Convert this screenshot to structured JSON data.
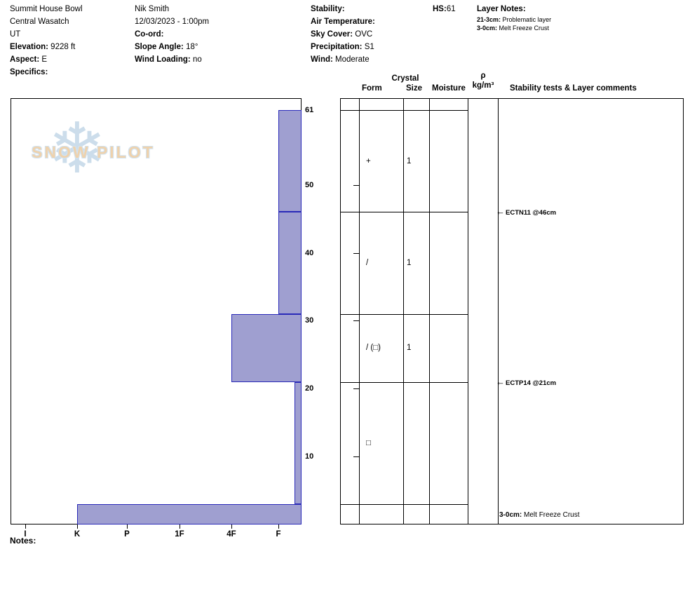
{
  "header": {
    "site": {
      "name": "Summit House Bowl",
      "region": "Central Wasatch",
      "state": "UT",
      "elevation_label": "Elevation:",
      "elevation_value": "9228 ft",
      "aspect_label": "Aspect:",
      "aspect_value": "E",
      "specifics_label": "Specifics:"
    },
    "observer": {
      "name": "Nik Smith",
      "datetime": "12/03/2023 - 1:00pm",
      "coord_label": "Co-ord:",
      "slope_angle_label": "Slope Angle:",
      "slope_angle_value": "18°",
      "wind_loading_label": "Wind Loading:",
      "wind_loading_value": "no"
    },
    "conditions": {
      "stability_label": "Stability:",
      "air_temperature_label": "Air Temperature:",
      "sky_cover_label": "Sky Cover:",
      "sky_cover_value": "OVC",
      "precipitation_label": "Precipitation:",
      "precipitation_value": "S1",
      "wind_label": "Wind:",
      "wind_value": "Moderate"
    },
    "hs_label": "HS:",
    "hs_value": "61",
    "layer_notes": {
      "title": "Layer Notes:",
      "notes": [
        {
          "range": "21-3cm:",
          "text": "Problematic layer"
        },
        {
          "range": "3-0cm:",
          "text": "Melt Freeze Crust"
        }
      ]
    }
  },
  "logo": {
    "text": "SNOW PILOT"
  },
  "table_header": {
    "crystal": "Crystal",
    "form": "Form",
    "size": "Size",
    "moisture": "Moisture",
    "rho": "ρ",
    "rho_unit": "kg/m³",
    "comments": "Stability tests & Layer comments"
  },
  "notes_label": "Notes:",
  "chart_data": {
    "type": "bar",
    "subtype": "snow-profile-hardness",
    "title": "Snow pit hardness profile",
    "hs_cm": 61,
    "depth_unit": "cm",
    "depth_ticks": [
      10,
      20,
      30,
      40,
      50
    ],
    "surface_depth_label": "61",
    "hardness_categories": [
      "I",
      "K",
      "P",
      "1F",
      "4F",
      "F"
    ],
    "hardness_axis_note": "hardness increases to the left, bars anchored at right edge",
    "layers": [
      {
        "top_cm": 61,
        "bottom_cm": 46,
        "hardness": "F",
        "form": "+",
        "size": "1",
        "moisture": "",
        "density": ""
      },
      {
        "top_cm": 46,
        "bottom_cm": 31,
        "hardness": "F",
        "form": "/",
        "size": "1",
        "moisture": "",
        "density": ""
      },
      {
        "top_cm": 31,
        "bottom_cm": 21,
        "hardness": "4F",
        "form": "/ (□)",
        "size": "1",
        "moisture": "",
        "density": ""
      },
      {
        "top_cm": 21,
        "bottom_cm": 3,
        "hardness": "F-",
        "form": "□",
        "size": "",
        "moisture": "",
        "density": ""
      },
      {
        "top_cm": 3,
        "bottom_cm": 0,
        "hardness": "K",
        "form": "",
        "size": "",
        "moisture": "",
        "density": ""
      }
    ],
    "stability_tests": [
      {
        "label": "ECTN11 @46cm",
        "depth_cm": 46
      },
      {
        "label": "ECTP14 @21cm",
        "depth_cm": 21
      }
    ],
    "layer_comments": [
      {
        "range": "3-0cm:",
        "text": "Melt Freeze Crust",
        "layer_top_cm": 3,
        "layer_bottom_cm": 0
      }
    ],
    "bar_fill": "#9f9fd0",
    "bar_border": "#2a2ab8",
    "legend_position": "none",
    "grid": false
  }
}
